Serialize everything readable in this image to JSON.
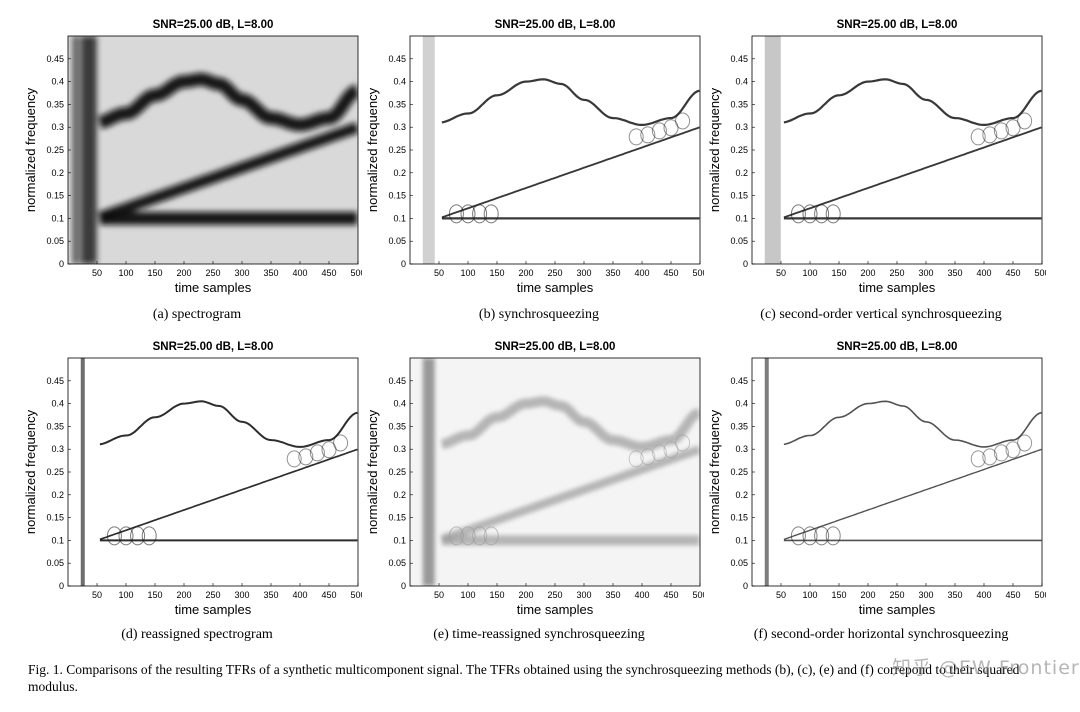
{
  "panels": [
    {
      "id": "a",
      "title": "SNR=25.00 dB, L=8.00",
      "caption": "(a)  spectrogram",
      "style": "spectrogram"
    },
    {
      "id": "b",
      "title": "SNR=25.00 dB, L=8.00",
      "caption": "(b)  synchrosqueezing",
      "style": "sst"
    },
    {
      "id": "c",
      "title": "SNR=25.00 dB, L=8.00",
      "caption": "(c)  second-order vertical synchrosqueezing",
      "style": "vsst2"
    },
    {
      "id": "d",
      "title": "SNR=25.00 dB, L=8.00",
      "caption": "(d)  reassigned spectrogram",
      "style": "rs"
    },
    {
      "id": "e",
      "title": "SNR=25.00 dB, L=8.00",
      "caption": "(e)  time-reassigned synchrosqueezing",
      "style": "tsst"
    },
    {
      "id": "f",
      "title": "SNR=25.00 dB, L=8.00",
      "caption": "(f)  second-order horizontal synchrosqueezing",
      "style": "hsst2"
    }
  ],
  "axes": {
    "xlabel": "time samples",
    "ylabel": "normalized frequency",
    "xticks": [
      "50",
      "100",
      "150",
      "200",
      "250",
      "300",
      "350",
      "400",
      "450",
      "500"
    ],
    "yticks": [
      "0",
      "0.05",
      "0.1",
      "0.15",
      "0.2",
      "0.25",
      "0.3",
      "0.35",
      "0.4",
      "0.45"
    ]
  },
  "chart_data": {
    "type": "heatmap",
    "x_range": [
      0,
      500
    ],
    "y_range": [
      0,
      0.5
    ],
    "components": [
      {
        "name": "sinusoidal FM",
        "x": [
          50,
          100,
          150,
          200,
          230,
          260,
          300,
          350,
          400,
          450,
          500
        ],
        "y": [
          0.31,
          0.33,
          0.37,
          0.4,
          0.405,
          0.395,
          0.36,
          0.32,
          0.305,
          0.32,
          0.38
        ]
      },
      {
        "name": "linear chirp",
        "x": [
          50,
          500
        ],
        "y": [
          0.1,
          0.3
        ]
      },
      {
        "name": "pure tone",
        "x": [
          50,
          500
        ],
        "y": [
          0.1,
          0.1
        ]
      },
      {
        "name": "impulse",
        "x": [
          30,
          30
        ],
        "y": [
          0,
          0.5
        ]
      }
    ]
  },
  "figure_caption": "Fig. 1.  Comparisons of the resulting TFRs of a synthetic multicomponent signal. The TFRs obtained using the synchrosqueezing methods (b), (c), (e) and (f) correpond to their squared modulus.",
  "watermark": "知乎 @EW Frontier"
}
